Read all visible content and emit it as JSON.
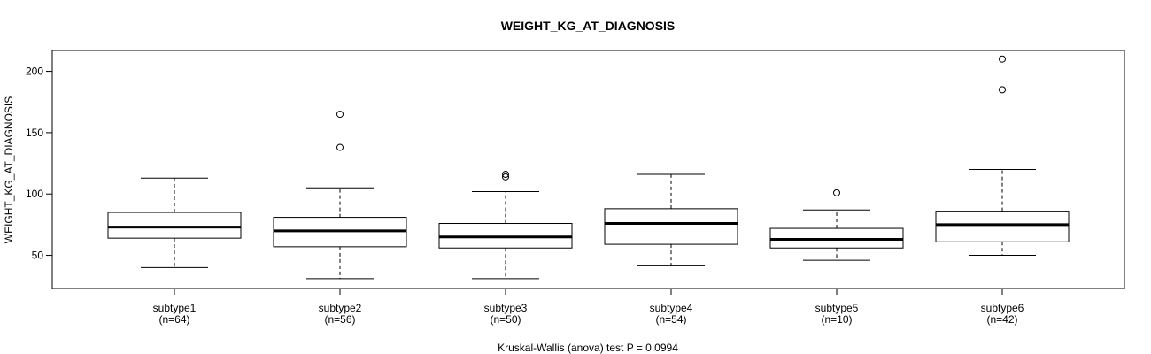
{
  "chart_data": {
    "type": "box",
    "title": "WEIGHT_KG_AT_DIAGNOSIS",
    "ylabel": "WEIGHT_KG_AT_DIAGNOSIS",
    "xlabel": "",
    "footnote": "Kruskal-Wallis (anova) test P = 0.0994",
    "ylim": [
      23,
      217
    ],
    "yticks": [
      50,
      100,
      150,
      200
    ],
    "groups": [
      {
        "name": "subtype1",
        "n_label": "(n=64)",
        "min": 40,
        "q1": 64,
        "median": 73,
        "q3": 85,
        "max": 113,
        "outliers": []
      },
      {
        "name": "subtype2",
        "n_label": "(n=56)",
        "min": 31,
        "q1": 57,
        "median": 70,
        "q3": 81,
        "max": 105,
        "outliers": [
          138,
          165
        ]
      },
      {
        "name": "subtype3",
        "n_label": "(n=50)",
        "min": 31,
        "q1": 56,
        "median": 65,
        "q3": 76,
        "max": 102,
        "outliers": [
          114,
          116
        ]
      },
      {
        "name": "subtype4",
        "n_label": "(n=54)",
        "min": 42,
        "q1": 59,
        "median": 76,
        "q3": 88,
        "max": 116,
        "outliers": []
      },
      {
        "name": "subtype5",
        "n_label": "(n=10)",
        "min": 46,
        "q1": 56,
        "median": 63,
        "q3": 72,
        "max": 87,
        "outliers": [
          101
        ]
      },
      {
        "name": "subtype6",
        "n_label": "(n=42)",
        "min": 50,
        "q1": 61,
        "median": 75,
        "q3": 86,
        "max": 120,
        "outliers": [
          185,
          210
        ]
      }
    ]
  }
}
